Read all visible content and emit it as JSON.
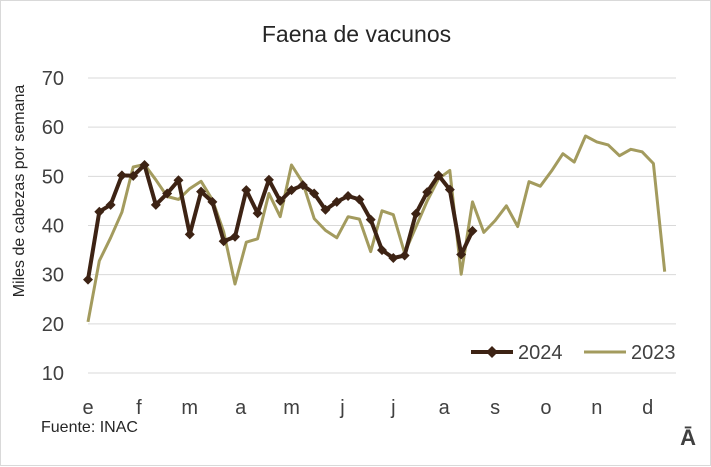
{
  "chart_data": {
    "type": "line",
    "title": "Faena de vacunos",
    "ylabel": "Miles de cabezas por semana",
    "xlabel": "",
    "ylim": [
      10,
      70
    ],
    "yticks": [
      10,
      20,
      30,
      40,
      50,
      60,
      70
    ],
    "xlim": [
      1,
      53
    ],
    "month_labels": [
      "e",
      "f",
      "m",
      "a",
      "m",
      "j",
      "j",
      "a",
      "s",
      "o",
      "n",
      "d"
    ],
    "month_weeks": [
      1,
      5.5,
      10,
      14.5,
      19,
      23.5,
      28,
      32.5,
      37,
      41.5,
      46,
      50.5
    ],
    "grid": true,
    "legend_position": "bottom-right",
    "colors": {
      "s2024": "#3d2314",
      "s2023": "#a39b5e"
    },
    "series": [
      {
        "name": "2024",
        "markers": true,
        "values": [
          29,
          42.8,
          44.2,
          50.2,
          50.1,
          52.3,
          44.2,
          46.5,
          49.2,
          38.2,
          46.9,
          44.8,
          36.8,
          37.7,
          47.2,
          42.5,
          49.3,
          45,
          47.2,
          48.2,
          46.5,
          43.2,
          44.8,
          46,
          45.3,
          41.2,
          35,
          33.4,
          33.9,
          42.4,
          46.8,
          50.2,
          47.3,
          34.1,
          38.9
        ]
      },
      {
        "name": "2023",
        "markers": false,
        "values": [
          20.4,
          32.8,
          37.5,
          42.7,
          51.9,
          52.4,
          49.3,
          45.9,
          45.3,
          47.5,
          49,
          45.2,
          38.7,
          28.1,
          36.6,
          37.3,
          46.5,
          41.8,
          52.3,
          48.7,
          41.4,
          39,
          37.5,
          41.8,
          41.3,
          34.7,
          43,
          42.2,
          34.4,
          39.7,
          45,
          49.5,
          51.2,
          30.1,
          44.8,
          38.6,
          41,
          44,
          39.8,
          48.9,
          48,
          51.1,
          54.6,
          52.9,
          58.2,
          57,
          56.4,
          54.2,
          55.5,
          55,
          52.6,
          30.6
        ]
      }
    ]
  },
  "footer": {
    "source": "Fuente: INAC",
    "logo_text": "Ā"
  }
}
